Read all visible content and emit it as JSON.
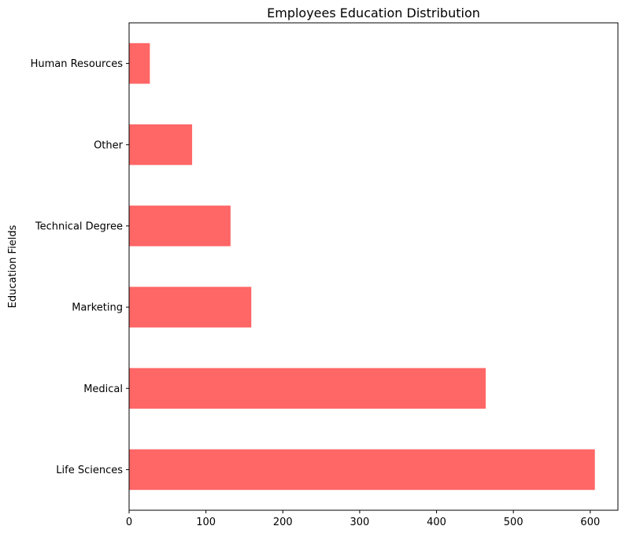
{
  "chart_data": {
    "type": "bar",
    "orientation": "horizontal",
    "title": "Employees Education Distribution",
    "xlabel": "",
    "ylabel": "Education Fields",
    "categories": [
      "Life Sciences",
      "Medical",
      "Marketing",
      "Technical Degree",
      "Other",
      "Human Resources"
    ],
    "values": [
      606,
      464,
      159,
      132,
      82,
      27
    ],
    "xlim": [
      0,
      636
    ],
    "xticks": [
      0,
      100,
      200,
      300,
      400,
      500,
      600
    ],
    "bar_color": "#ff6666",
    "grid": false,
    "legend": "none"
  }
}
